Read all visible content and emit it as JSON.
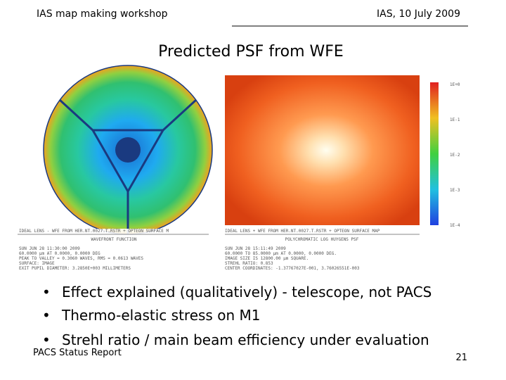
{
  "header": {
    "left": "IAS map making workshop",
    "right": "IAS, 10 July 2009"
  },
  "title": "Predicted PSF from WFE",
  "figures": [
    {
      "caption": [
        "IDEAL LENS - WFE FROM HER.NT.0027.T.RSTR + OPTEON SURFACE M",
        "WAVEFRONT FUNCTION",
        "SUN JUN 28 11:30:00 2009",
        "60.0000 µm AT 0.0000, 0.0000 DEG",
        "PEAK TO VALLEY = 0.3060 WAVES, RMS = 0.0613 WAVES",
        "SURFACE: IMAGE",
        "EXIT PUPIL DIAMETER: 3.2850E+003 MILLIMETERS"
      ]
    },
    {
      "caption": [
        "IDEAL LENS + WFE FROM HER.NT.0027.T.RSTR + OPTEON SURFACE MAP",
        "POLYCHROMATIC LOG HUYGENS PSF",
        "SUN JUN 28 15:11:49 2009",
        "60.0000 TO 85.0000 µm AT 0.0000, 0.0000 DEG.",
        "IMAGE SIZE IS 12800.00 µm SQUARE.",
        "STREHL RATIO: 0.853",
        "CENTER COORDINATES: -1.37767027E-001, 3.76026551E-003"
      ],
      "colorbar": [
        "1E+0",
        "1E-1",
        "1E-2",
        "1E-3",
        "1E-4"
      ]
    }
  ],
  "bullets": [
    "Effect explained (qualitatively) - telescope, not PACS",
    "Thermo-elastic stress on M1",
    "Strehl ratio / main beam efficiency under evaluation"
  ],
  "footer": {
    "left": "PACS Status Report",
    "page": "21"
  }
}
